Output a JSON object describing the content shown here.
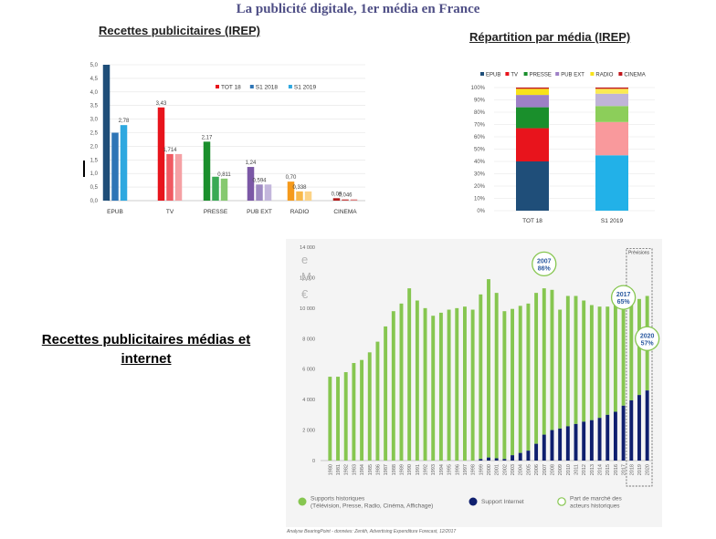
{
  "main_title": "La publicité digitale, 1er média en France",
  "sections": {
    "chart1_title": "Recettes publicitaires (IREP)",
    "chart2_title": "Répartition par média (IREP)",
    "chart3_title": "Recettes publicitaires médias et internet"
  },
  "caption": "Analyse BearingPoint - données: Zenith, Advertising Expenditure Forecast, 12/2017",
  "chart_data": [
    {
      "type": "bar",
      "title": "Recettes publicitaires (IREP)",
      "categories": [
        "EPUB",
        "TV",
        "PRESSE",
        "PUB EXT",
        "RADIO",
        "CINEMA"
      ],
      "series": [
        {
          "name": "TOT 18",
          "values": [
            5.0,
            3.43,
            2.17,
            1.24,
            0.7,
            0.09
          ],
          "labels": [
            "",
            "3,43",
            "2,17",
            "1,24",
            "0,70",
            "0,09"
          ]
        },
        {
          "name": "S1 2018",
          "values": [
            2.5,
            1.714,
            0.88,
            0.594,
            0.34,
            0.046
          ],
          "labels": [
            "",
            "1,714",
            "",
            "0,594",
            "0,338",
            "0,046"
          ]
        },
        {
          "name": "S1 2019",
          "values": [
            2.78,
            1.714,
            0.811,
            0.594,
            0.338,
            0.046
          ],
          "labels": [
            "2,78",
            "",
            "0,811",
            "",
            "",
            ""
          ]
        }
      ],
      "colors": [
        [
          "#1f4e79",
          "#2e75b6",
          "#2ea8e0"
        ],
        [
          "#e8141c",
          "#f05a62",
          "#f5a0a4"
        ],
        [
          "#1a8f2c",
          "#3aaa55",
          "#86c96f"
        ],
        [
          "#7b58a6",
          "#9e8ac2",
          "#c3b6dc"
        ],
        [
          "#f59a1c",
          "#f8b84a",
          "#fcd386"
        ],
        [
          "#b21a1a",
          "#c94a4a",
          "#de8080"
        ]
      ],
      "yticks": [
        "0,0",
        "0,5",
        "1,0",
        "1,5",
        "2,0",
        "2,5",
        "3,0",
        "3,5",
        "4,0",
        "4,5",
        "5,0"
      ],
      "ylim": [
        0,
        5
      ],
      "legend": "top-right",
      "grid": true
    },
    {
      "type": "bar",
      "stacked": true,
      "title": "Répartition par média (IREP)",
      "categories": [
        "TOT 18",
        "S1 2019"
      ],
      "series": [
        {
          "name": "EPUB",
          "color": "#1f4e79",
          "values": [
            40,
            45
          ]
        },
        {
          "name": "TV",
          "color": "#e8141c",
          "values": [
            27,
            27
          ]
        },
        {
          "name": "PRESSE",
          "color": "#1a8f2c",
          "values": [
            17,
            13
          ]
        },
        {
          "name": "PUB EXT",
          "color": "#9e80c6",
          "values": [
            10,
            10
          ]
        },
        {
          "name": "RADIO",
          "color": "#f8e21a",
          "values": [
            5,
            4
          ]
        },
        {
          "name": "CINEMA",
          "color": "#c0161c",
          "values": [
            1,
            1
          ]
        }
      ],
      "segment_colors_s1_2019": [
        "#22b1e8",
        "#f9999c",
        "#8cce5a",
        "#c0b4d8",
        "#fbea52",
        "#c0161c"
      ],
      "yticks": [
        "0%",
        "10%",
        "20%",
        "30%",
        "40%",
        "50%",
        "60%",
        "70%",
        "80%",
        "90%",
        "100%"
      ],
      "ylim": [
        0,
        100
      ],
      "legend": "top",
      "grid": true
    },
    {
      "type": "bar",
      "stacked": true,
      "title": "Recettes publicitaires médias et internet",
      "x": [
        "1980",
        "1981",
        "1982",
        "1983",
        "1984",
        "1985",
        "1986",
        "1987",
        "1988",
        "1989",
        "1990",
        "1991",
        "1992",
        "1993",
        "1994",
        "1995",
        "1996",
        "1997",
        "1998",
        "1999",
        "2000",
        "2001",
        "2002",
        "2003",
        "2004",
        "2005",
        "2006",
        "2007",
        "2008",
        "2009",
        "2010",
        "2011",
        "2012",
        "2013",
        "2014",
        "2015",
        "2016",
        "2017",
        "2018",
        "2019",
        "2020"
      ],
      "series": [
        {
          "name": "Support Internet",
          "color": "#0f1f6e",
          "values": [
            0,
            0,
            0,
            0,
            0,
            0,
            0,
            0,
            0,
            0,
            0,
            0,
            0,
            0,
            0,
            0,
            0,
            0,
            0,
            100,
            200,
            150,
            100,
            350,
            500,
            650,
            1100,
            1700,
            2000,
            2100,
            2250,
            2400,
            2550,
            2650,
            2800,
            3000,
            3200,
            3600,
            3950,
            4300,
            4600
          ]
        },
        {
          "name": "Supports historiques (Télévision, Presse, Radio, Cinéma, Affichage)",
          "color": "#86c650",
          "totals": [
            5500,
            5500,
            5800,
            6400,
            6600,
            7100,
            7800,
            8800,
            9800,
            10300,
            11300,
            10500,
            10000,
            9500,
            9700,
            9900,
            10000,
            10100,
            9900,
            10900,
            11900,
            11000,
            9800,
            9950,
            10150,
            10300,
            11000,
            11300,
            11200,
            9900,
            10800,
            10800,
            10500,
            10200,
            10100,
            10100,
            10300,
            10700,
            10600,
            10600,
            10800
          ]
        }
      ],
      "legend_third": "Part de marché des acteurs historiques",
      "annotations": [
        {
          "year": "2007",
          "label": "2007",
          "pct": "86%"
        },
        {
          "year": "2017",
          "label": "2017",
          "pct": "65%"
        },
        {
          "year": "2020",
          "label": "2020",
          "pct": "57%"
        }
      ],
      "forecast_label": "Prévisions",
      "axis_fragment": "e\nM\n€",
      "yticks": [
        "0",
        "2 000",
        "4 000",
        "6 000",
        "8 000",
        "10 000",
        "12 000",
        "14 000"
      ],
      "ylim": [
        0,
        14000
      ],
      "legend": "bottom"
    }
  ]
}
